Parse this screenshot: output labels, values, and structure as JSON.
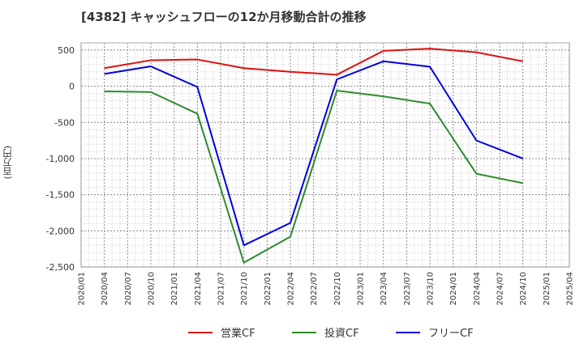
{
  "chart_data": {
    "type": "line",
    "title": "[4382]  キャッシュフローの12か月移動合計の推移",
    "ylabel": "(百万円)",
    "xlabel": "",
    "ylim": [
      -2500,
      600
    ],
    "yticks": [
      500,
      0,
      -500,
      -1000,
      -1500,
      -2000,
      -2500
    ],
    "ytick_labels": [
      "500",
      "0",
      "-500",
      "-1,000",
      "-1,500",
      "-2,000",
      "-2,500"
    ],
    "x_categories": [
      "2020/01",
      "2020/04",
      "2020/07",
      "2020/10",
      "2021/01",
      "2021/04",
      "2021/07",
      "2021/10",
      "2022/01",
      "2022/04",
      "2022/07",
      "2022/10",
      "2023/01",
      "2023/04",
      "2023/07",
      "2023/10",
      "2024/01",
      "2024/04",
      "2024/07",
      "2024/10",
      "2025/01",
      "2025/04"
    ],
    "grid": true,
    "legend_position": "bottom",
    "series": [
      {
        "name": "営業CF",
        "color": "#dd1111",
        "x": [
          "2020/04",
          "2020/10",
          "2021/04",
          "2021/10",
          "2022/04",
          "2022/10",
          "2023/04",
          "2023/10",
          "2024/04",
          "2024/10"
        ],
        "values": [
          250,
          360,
          370,
          250,
          200,
          160,
          490,
          520,
          470,
          345
        ]
      },
      {
        "name": "投資CF",
        "color": "#2e8b2e",
        "x": [
          "2020/04",
          "2020/10",
          "2021/04",
          "2021/10",
          "2022/04",
          "2022/10",
          "2023/04",
          "2023/10",
          "2024/04",
          "2024/10"
        ],
        "values": [
          -70,
          -80,
          -380,
          -2440,
          -2080,
          -60,
          -140,
          -240,
          -1210,
          -1340
        ]
      },
      {
        "name": "フリーCF",
        "color": "#0000dd",
        "x": [
          "2020/04",
          "2020/10",
          "2021/04",
          "2021/10",
          "2022/04",
          "2022/10",
          "2023/04",
          "2023/10",
          "2024/04",
          "2024/10"
        ],
        "values": [
          170,
          275,
          -10,
          -2200,
          -1890,
          95,
          345,
          270,
          -750,
          -1000
        ]
      }
    ]
  }
}
